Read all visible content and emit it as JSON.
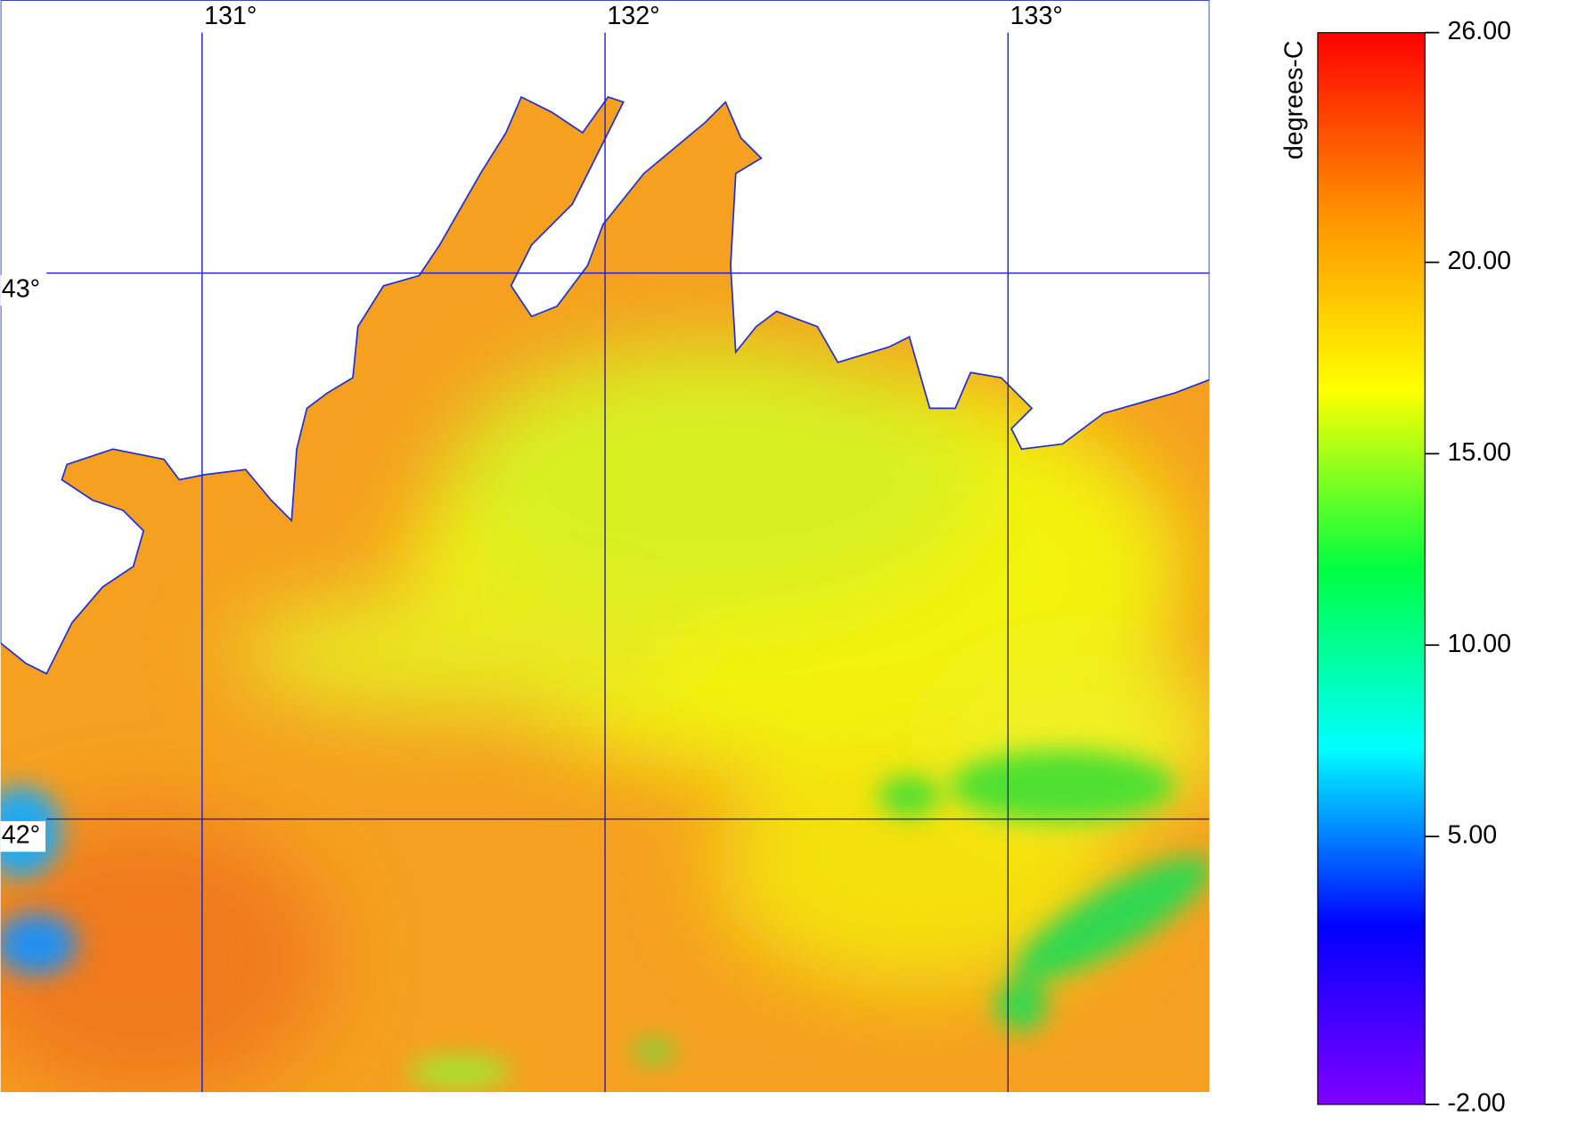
{
  "map": {
    "xlim": [
      130.5,
      133.5
    ],
    "ylim": [
      41.5,
      43.5
    ],
    "lon_ticks": [
      {
        "value": 131,
        "label": "131°"
      },
      {
        "value": 132,
        "label": "132°"
      },
      {
        "value": 133,
        "label": "133°"
      }
    ],
    "lat_ticks": [
      {
        "value": 43,
        "label": "43°"
      },
      {
        "value": 42,
        "label": "42°"
      }
    ]
  },
  "colorbar": {
    "label": "degrees-C",
    "lim": [
      -2,
      26
    ],
    "colors": [
      "#8000ff",
      "#0000ff",
      "#00ffff",
      "#00ff40",
      "#ffff00",
      "#ff9000",
      "#ff0000"
    ],
    "ticks": [
      {
        "value": 26,
        "label": "26.00"
      },
      {
        "value": 20,
        "label": "20.00"
      },
      {
        "value": 15,
        "label": "15.00"
      },
      {
        "value": 10,
        "label": "10.00"
      },
      {
        "value": 5,
        "label": "5.00"
      },
      {
        "value": -2,
        "label": "-2.00"
      }
    ]
  }
}
